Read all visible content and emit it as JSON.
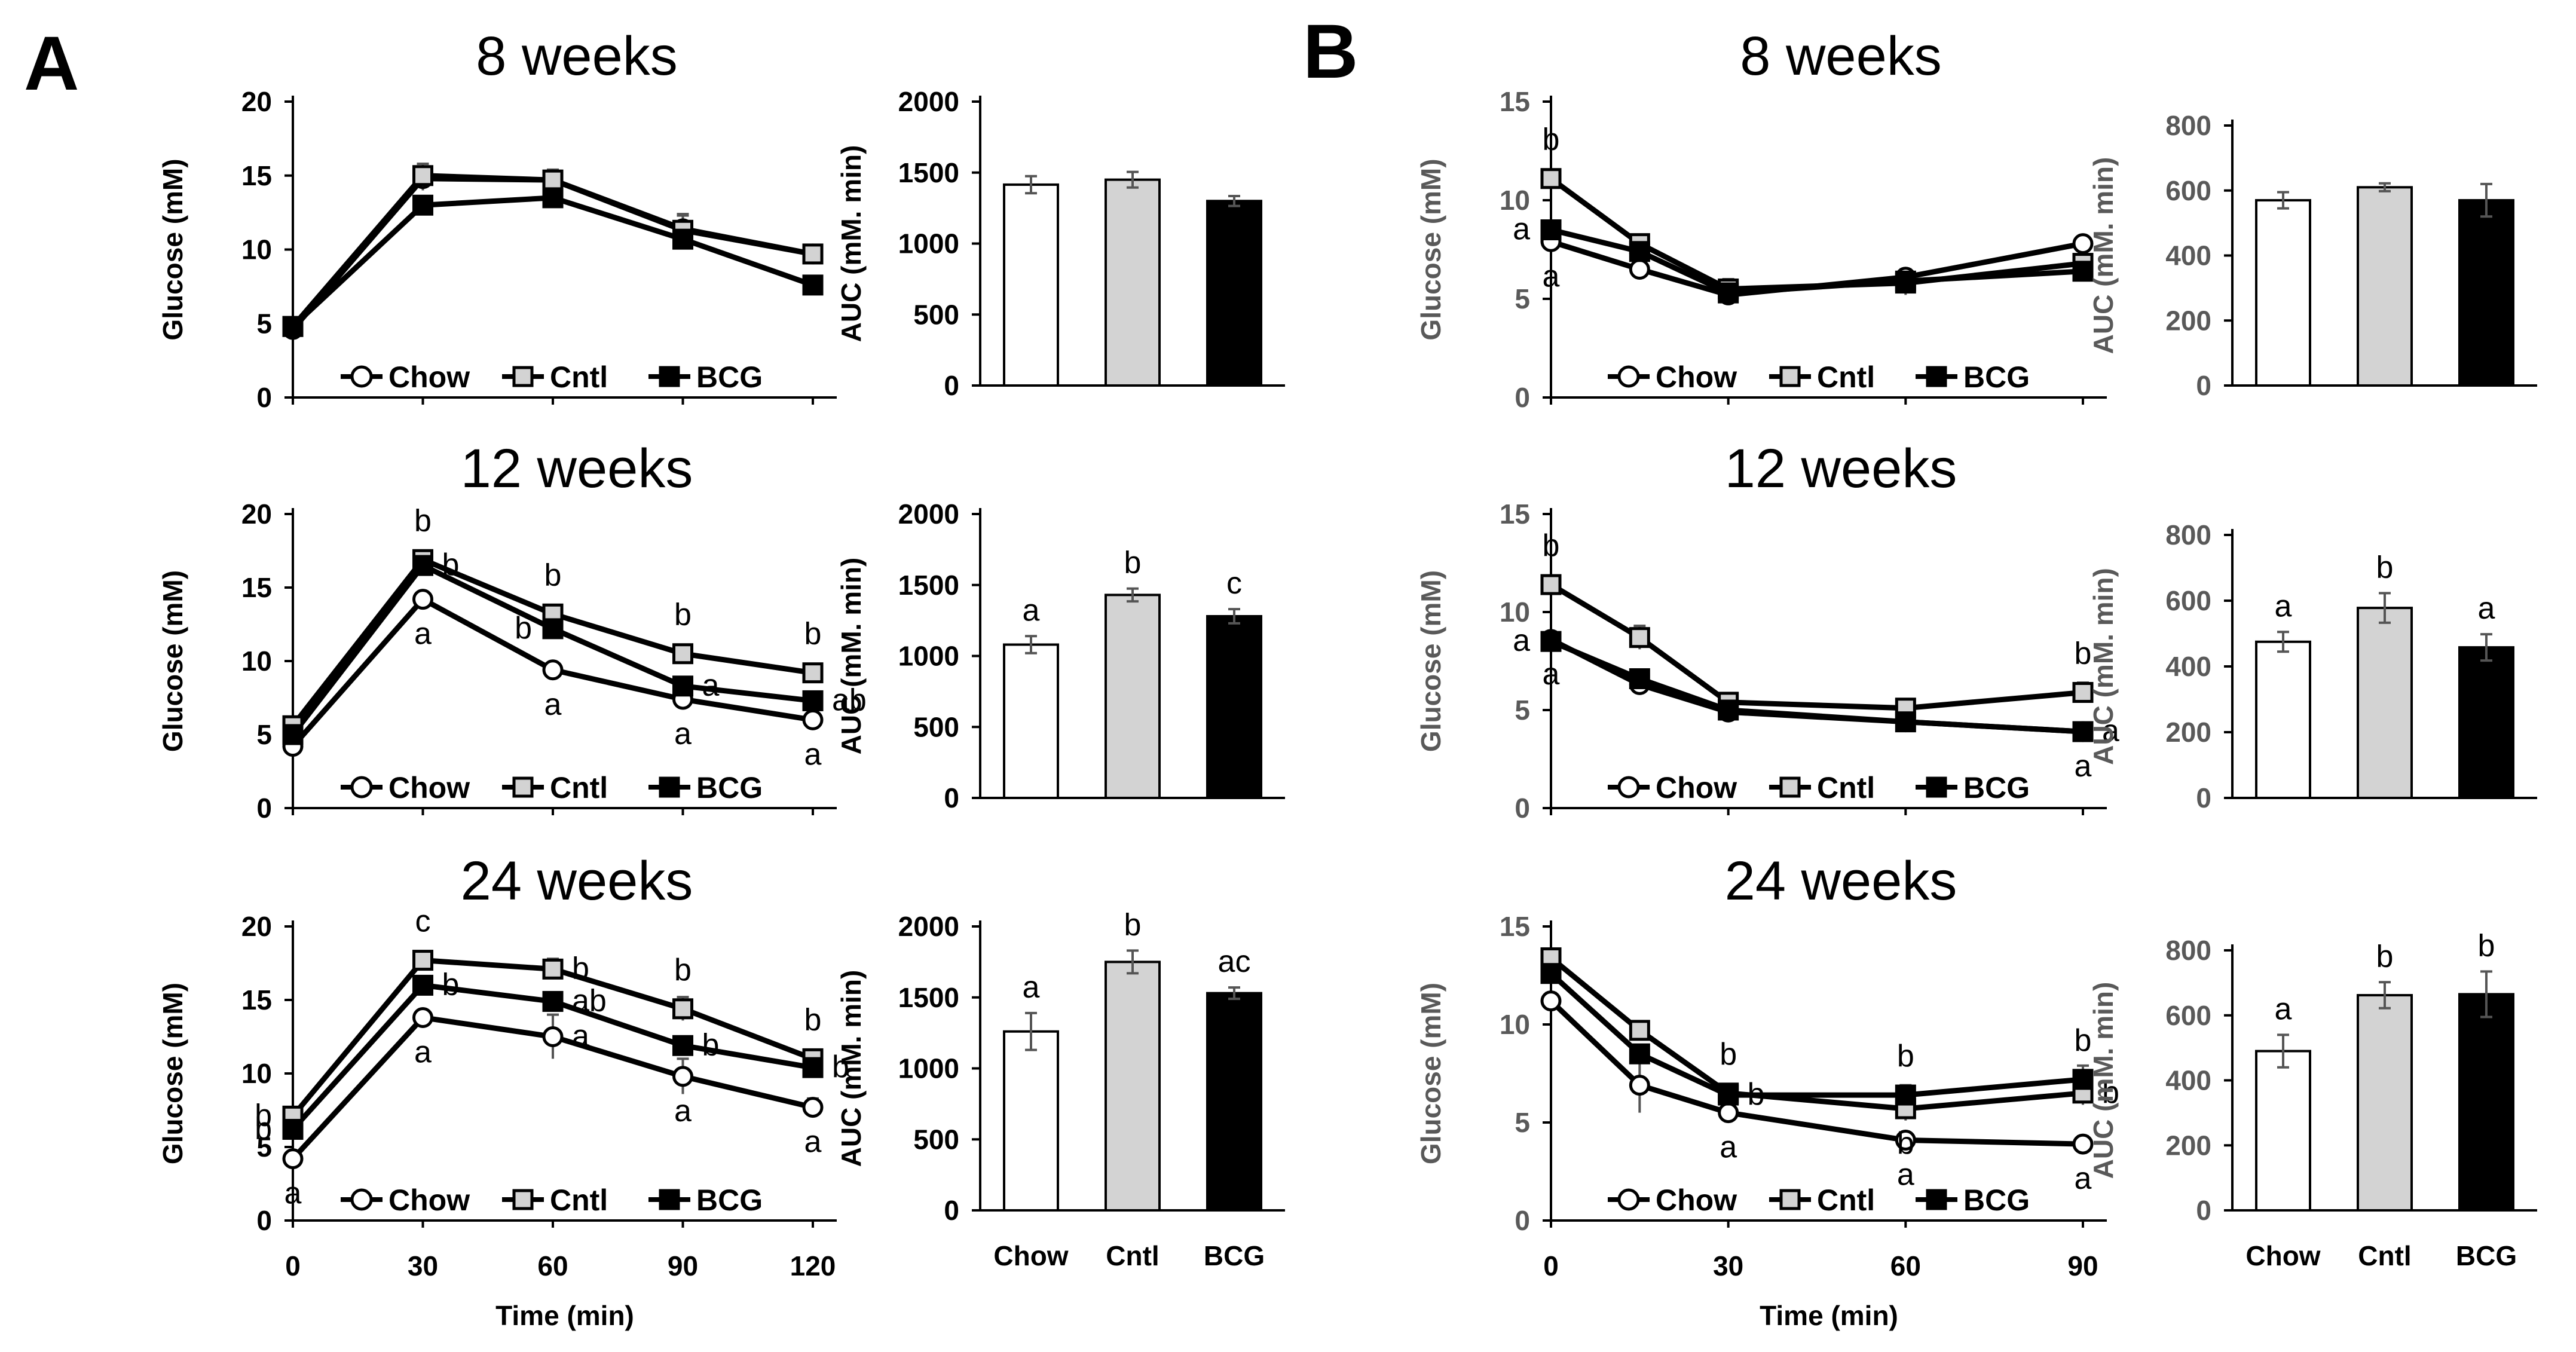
{
  "figure": {
    "panel_a_label": "A",
    "panel_b_label": "B"
  },
  "legend": [
    "Chow",
    "Cntl",
    "BCG"
  ],
  "colors": {
    "Chow": "#ffffff",
    "Cntl": "#d3d3d3",
    "BCG": "#000000",
    "A_axis": "#000000",
    "B_axis": "#595959"
  },
  "chart_data": [
    {
      "id": "A_line_8",
      "panel": "A",
      "type": "line",
      "title": "8 weeks",
      "ylabel": "Glucose (mM)",
      "xlabel": "",
      "ylim": [
        0,
        20
      ],
      "yticks": [
        0,
        5,
        10,
        15,
        20
      ],
      "x": [
        0,
        30,
        60,
        90,
        120
      ],
      "xticks": [
        0,
        30,
        60,
        90,
        120
      ],
      "xlim": [
        0,
        120
      ],
      "series": [
        {
          "name": "Chow",
          "values": [
            4.6,
            14.8,
            14.7,
            11.4,
            9.7
          ],
          "err": [
            0.2,
            0.8,
            0.6,
            1.0,
            0.4
          ],
          "labels": []
        },
        {
          "name": "Cntl",
          "values": [
            4.8,
            15.0,
            14.7,
            11.3,
            9.7
          ],
          "err": [
            0.2,
            0.8,
            0.7,
            1.0,
            0.4
          ],
          "labels": []
        },
        {
          "name": "BCG",
          "values": [
            4.8,
            13.0,
            13.5,
            10.7,
            7.6
          ],
          "err": [
            0.2,
            0.4,
            0.4,
            0.3,
            0.3
          ],
          "labels": []
        }
      ]
    },
    {
      "id": "A_line_12",
      "panel": "A",
      "type": "line",
      "title": "12 weeks",
      "ylabel": "Glucose (mM)",
      "xlabel": "",
      "ylim": [
        0,
        20
      ],
      "yticks": [
        0,
        5,
        10,
        15,
        20
      ],
      "x": [
        0,
        30,
        60,
        90,
        120
      ],
      "xticks": [
        0,
        30,
        60,
        90,
        120
      ],
      "xlim": [
        0,
        120
      ],
      "series": [
        {
          "name": "Chow",
          "values": [
            4.2,
            14.2,
            9.4,
            7.4,
            6.0
          ],
          "err": [
            0.2,
            0.5,
            0.5,
            0.3,
            0.3
          ],
          "labels": [
            null,
            {
              "text": "a",
              "pos": "below"
            },
            {
              "text": "a",
              "pos": "below"
            },
            {
              "text": "a",
              "pos": "below"
            },
            {
              "text": "a",
              "pos": "below"
            }
          ]
        },
        {
          "name": "Cntl",
          "values": [
            5.6,
            16.9,
            13.2,
            10.5,
            9.2
          ],
          "err": [
            0.3,
            0.3,
            0.4,
            0.3,
            0.6
          ],
          "labels": [
            null,
            {
              "text": "b",
              "pos": "above"
            },
            {
              "text": "b",
              "pos": "above"
            },
            {
              "text": "b",
              "pos": "above"
            },
            {
              "text": "b",
              "pos": "above"
            }
          ]
        },
        {
          "name": "BCG",
          "values": [
            5.0,
            16.5,
            12.2,
            8.3,
            7.3
          ],
          "err": [
            0.3,
            0.3,
            0.3,
            0.2,
            0.3
          ],
          "labels": [
            null,
            {
              "text": "b",
              "pos": "right"
            },
            {
              "text": "b",
              "pos": "left"
            },
            {
              "text": "a",
              "pos": "right"
            },
            {
              "text": "ab",
              "pos": "right"
            }
          ]
        }
      ]
    },
    {
      "id": "A_line_24",
      "panel": "A",
      "type": "line",
      "title": "24 weeks",
      "ylabel": "Glucose (mM)",
      "xlabel": "Time (min)",
      "ylim": [
        0,
        20
      ],
      "yticks": [
        0,
        5,
        10,
        15,
        20
      ],
      "x": [
        0,
        30,
        60,
        90,
        120
      ],
      "xticks": [
        0,
        30,
        60,
        90,
        120
      ],
      "xlim": [
        0,
        120
      ],
      "series": [
        {
          "name": "Chow",
          "values": [
            4.2,
            13.8,
            12.5,
            9.8,
            7.7
          ],
          "err": [
            0.2,
            0.5,
            1.5,
            1.2,
            0.6
          ],
          "labels": [
            {
              "text": "a",
              "pos": "below"
            },
            {
              "text": "a",
              "pos": "below"
            },
            {
              "text": "a",
              "pos": "right"
            },
            {
              "text": "a",
              "pos": "below"
            },
            {
              "text": "a",
              "pos": "below"
            }
          ]
        },
        {
          "name": "Cntl",
          "values": [
            7.1,
            17.7,
            17.1,
            14.4,
            11.0
          ],
          "err": [
            0.3,
            0.3,
            0.7,
            0.8,
            0.4
          ],
          "labels": [
            {
              "text": "b",
              "pos": "left"
            },
            {
              "text": "c",
              "pos": "above"
            },
            {
              "text": "b",
              "pos": "right"
            },
            {
              "text": "b",
              "pos": "above"
            },
            {
              "text": "b",
              "pos": "above"
            }
          ]
        },
        {
          "name": "BCG",
          "values": [
            6.2,
            16.0,
            14.9,
            11.9,
            10.4
          ],
          "err": [
            0.3,
            0.4,
            0.5,
            0.4,
            0.4
          ],
          "labels": [
            {
              "text": "b",
              "pos": "left"
            },
            {
              "text": "b",
              "pos": "right"
            },
            {
              "text": "ab",
              "pos": "right"
            },
            {
              "text": "b",
              "pos": "right"
            },
            {
              "text": "b",
              "pos": "right"
            }
          ]
        }
      ]
    },
    {
      "id": "A_bar_8",
      "panel": "A",
      "type": "bar",
      "ylabel": "AUC (mM. min)",
      "ylim": [
        0,
        2000
      ],
      "yticks": [
        0,
        500,
        1000,
        1500,
        2000
      ],
      "categories": [
        "Chow",
        "Cntl",
        "BCG"
      ],
      "values": [
        1415,
        1450,
        1300
      ],
      "err": [
        60,
        55,
        35
      ],
      "labels": [
        null,
        null,
        null
      ]
    },
    {
      "id": "A_bar_12",
      "panel": "A",
      "type": "bar",
      "ylabel": "AUC (mM. min)",
      "ylim": [
        0,
        2000
      ],
      "yticks": [
        0,
        500,
        1000,
        1500,
        2000
      ],
      "categories": [
        "Chow",
        "Cntl",
        "BCG"
      ],
      "values": [
        1080,
        1430,
        1280
      ],
      "err": [
        60,
        45,
        50
      ],
      "labels": [
        "a",
        "b",
        "c"
      ]
    },
    {
      "id": "A_bar_24",
      "panel": "A",
      "type": "bar",
      "ylabel": "AUC (mM. min)",
      "ylim": [
        0,
        2000
      ],
      "yticks": [
        0,
        500,
        1000,
        1500,
        2000
      ],
      "categories": [
        "Chow",
        "Cntl",
        "BCG"
      ],
      "values": [
        1260,
        1750,
        1530
      ],
      "err": [
        130,
        80,
        40
      ],
      "labels": [
        "a",
        "b",
        "ac"
      ]
    },
    {
      "id": "B_line_8",
      "panel": "B",
      "type": "line",
      "title": "8 weeks",
      "ylabel": "Glucose (mM)",
      "xlabel": "",
      "ylim": [
        0,
        15
      ],
      "yticks": [
        0,
        5,
        10,
        15
      ],
      "x": [
        0,
        15,
        30,
        60,
        90
      ],
      "xticks": [
        0,
        30,
        60,
        90
      ],
      "xlim": [
        0,
        90
      ],
      "series": [
        {
          "name": "Chow",
          "values": [
            7.9,
            6.5,
            5.2,
            6.1,
            7.8
          ],
          "err": [
            0.3,
            0.2,
            0.4,
            0.4,
            0.2
          ],
          "labels": [
            {
              "text": "a",
              "pos": "below"
            },
            null,
            null,
            null,
            null
          ]
        },
        {
          "name": "Cntl",
          "values": [
            11.1,
            7.8,
            5.5,
            5.8,
            6.8
          ],
          "err": [
            0.3,
            0.3,
            0.5,
            0.6,
            0.3
          ],
          "labels": [
            {
              "text": "b",
              "pos": "above"
            },
            null,
            null,
            null,
            null
          ]
        },
        {
          "name": "BCG",
          "values": [
            8.5,
            7.4,
            5.3,
            5.9,
            6.4
          ],
          "err": [
            0.4,
            0.3,
            0.3,
            0.3,
            0.2
          ],
          "labels": [
            {
              "text": "a",
              "pos": "left"
            },
            null,
            null,
            null,
            null
          ]
        }
      ]
    },
    {
      "id": "B_line_12",
      "panel": "B",
      "type": "line",
      "title": "12 weeks",
      "ylabel": "Glucose (mM)",
      "xlabel": "",
      "ylim": [
        0,
        15
      ],
      "yticks": [
        0,
        5,
        10,
        15
      ],
      "x": [
        0,
        15,
        30,
        60,
        90
      ],
      "xticks": [
        0,
        30,
        60,
        90
      ],
      "xlim": [
        0,
        90
      ],
      "series": [
        {
          "name": "Chow",
          "values": [
            8.6,
            6.3,
            4.9,
            4.4,
            3.9
          ],
          "err": [
            0.4,
            0.4,
            0.2,
            0.2,
            0.2
          ],
          "labels": [
            {
              "text": "a",
              "pos": "below"
            },
            null,
            null,
            null,
            {
              "text": "a",
              "pos": "below"
            }
          ]
        },
        {
          "name": "Cntl",
          "values": [
            11.4,
            8.7,
            5.4,
            5.1,
            5.9
          ],
          "err": [
            0.3,
            0.6,
            0.3,
            0.3,
            0.5
          ],
          "labels": [
            {
              "text": "b",
              "pos": "above"
            },
            null,
            null,
            null,
            {
              "text": "b",
              "pos": "above"
            }
          ]
        },
        {
          "name": "BCG",
          "values": [
            8.5,
            6.6,
            5.0,
            4.4,
            3.9
          ],
          "err": [
            0.4,
            0.4,
            0.2,
            0.2,
            0.2
          ],
          "labels": [
            {
              "text": "a",
              "pos": "left"
            },
            null,
            null,
            null,
            {
              "text": "a",
              "pos": "right"
            }
          ]
        }
      ]
    },
    {
      "id": "B_line_24",
      "panel": "B",
      "type": "line",
      "title": "24 weeks",
      "ylabel": "Glucose (mM)",
      "xlabel": "Time (min)",
      "ylim": [
        0,
        15
      ],
      "yticks": [
        0,
        5,
        10,
        15
      ],
      "x": [
        0,
        15,
        30,
        60,
        90
      ],
      "xticks": [
        0,
        30,
        60,
        90
      ],
      "xlim": [
        0,
        90
      ],
      "series": [
        {
          "name": "Chow",
          "values": [
            11.2,
            6.9,
            5.5,
            4.1,
            3.9
          ],
          "err": [
            0.4,
            1.4,
            0.3,
            0.2,
            0.4
          ],
          "labels": [
            null,
            null,
            {
              "text": "a",
              "pos": "below"
            },
            {
              "text": "a",
              "pos": "below"
            },
            {
              "text": "a",
              "pos": "below"
            }
          ]
        },
        {
          "name": "Cntl",
          "values": [
            13.4,
            9.7,
            6.5,
            5.7,
            6.5
          ],
          "err": [
            0.4,
            0.4,
            0.4,
            0.6,
            0.6
          ],
          "labels": [
            null,
            null,
            {
              "text": "b",
              "pos": "above"
            },
            {
              "text": "b",
              "pos": "below"
            },
            {
              "text": "b",
              "pos": "right"
            }
          ]
        },
        {
          "name": "BCG",
          "values": [
            12.6,
            8.5,
            6.4,
            6.4,
            7.2
          ],
          "err": [
            0.4,
            0.4,
            0.4,
            0.5,
            0.7
          ],
          "labels": [
            null,
            null,
            {
              "text": "b",
              "pos": "right"
            },
            {
              "text": "b",
              "pos": "above"
            },
            {
              "text": "b",
              "pos": "above"
            }
          ]
        }
      ]
    },
    {
      "id": "B_bar_8",
      "panel": "B",
      "type": "bar",
      "ylabel": "AUC (mM. min)",
      "ylim": [
        0,
        800
      ],
      "yticks": [
        0,
        200,
        400,
        600,
        800
      ],
      "categories": [
        "Chow",
        "Cntl",
        "BCG"
      ],
      "values": [
        570,
        610,
        570
      ],
      "err": [
        25,
        12,
        50
      ],
      "labels": [
        null,
        null,
        null
      ]
    },
    {
      "id": "B_bar_12",
      "panel": "B",
      "type": "bar",
      "ylabel": "AUC (mM. min)",
      "ylim": [
        0,
        800
      ],
      "yticks": [
        0,
        200,
        400,
        600,
        800
      ],
      "categories": [
        "Chow",
        "Cntl",
        "BCG"
      ],
      "values": [
        475,
        578,
        458
      ],
      "err": [
        30,
        45,
        40
      ],
      "labels": [
        "a",
        "b",
        "a"
      ]
    },
    {
      "id": "B_bar_24",
      "panel": "B",
      "type": "bar",
      "ylabel": "AUC (mM. min)",
      "ylim": [
        0,
        800
      ],
      "yticks": [
        0,
        200,
        400,
        600,
        800
      ],
      "categories": [
        "Chow",
        "Cntl",
        "BCG"
      ],
      "values": [
        490,
        662,
        665
      ],
      "err": [
        50,
        40,
        70
      ],
      "labels": [
        "a",
        "b",
        "b"
      ]
    }
  ]
}
